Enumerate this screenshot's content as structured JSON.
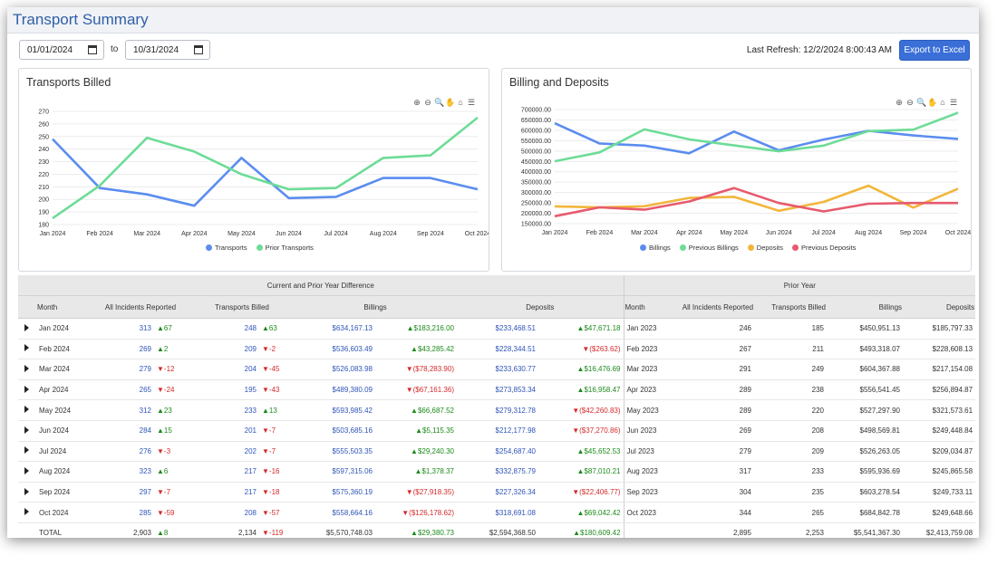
{
  "app": {
    "title": "Transport Summary"
  },
  "filters": {
    "start_date": "01/01/2024",
    "to_label": "to",
    "end_date": "10/31/2024"
  },
  "refresh": {
    "text": "Last Refresh: 12/2/2024 8:00:43 AM"
  },
  "export": {
    "label": "Export to Excel"
  },
  "toolbar_icons": [
    "zoom-in-icon",
    "zoom-out-icon",
    "zoom-icon",
    "pan-icon",
    "home-icon",
    "menu-icon"
  ],
  "colors": {
    "blue": "#5b8def",
    "green": "#6ddc97",
    "yellow": "#f2b63c",
    "red": "#e75a6d",
    "accent": "#3a6fd8"
  },
  "chart_data": [
    {
      "type": "line",
      "title": "Transports Billed",
      "categories": [
        "Jan 2024",
        "Feb 2024",
        "Mar 2024",
        "Apr 2024",
        "May 2024",
        "Jun 2024",
        "Jul 2024",
        "Aug 2024",
        "Sep 2024",
        "Oct 2024"
      ],
      "yticks": [
        180,
        190,
        200,
        210,
        220,
        230,
        240,
        250,
        260,
        270
      ],
      "ylim": [
        180,
        270
      ],
      "series": [
        {
          "name": "Transports",
          "color": "#5b8def",
          "values": [
            248,
            209,
            204,
            195,
            233,
            201,
            202,
            217,
            217,
            208
          ]
        },
        {
          "name": "Prior Transports",
          "color": "#6ddc97",
          "values": [
            185,
            211,
            249,
            238,
            220,
            208,
            209,
            233,
            235,
            265
          ]
        }
      ],
      "legend": "bottom-center"
    },
    {
      "type": "line",
      "title": "Billing and Deposits",
      "categories": [
        "Jan 2024",
        "Feb 2024",
        "Mar 2024",
        "Apr 2024",
        "May 2024",
        "Jun 2024",
        "Jul 2024",
        "Aug 2024",
        "Sep 2024",
        "Oct 2024"
      ],
      "yticks": [
        "150000.00",
        "200000.00",
        "250000.00",
        "300000.00",
        "350000.00",
        "400000.00",
        "450000.00",
        "500000.00",
        "550000.00",
        "600000.00",
        "650000.00",
        "700000.00"
      ],
      "ylim": [
        150000,
        700000
      ],
      "series": [
        {
          "name": "Billings",
          "color": "#5b8def",
          "values": [
            634167.13,
            536603.49,
            526083.98,
            489380.09,
            593985.42,
            503685.16,
            555503.35,
            597315.06,
            575360.19,
            558664.16
          ]
        },
        {
          "name": "Previous Billings",
          "color": "#6ddc97",
          "values": [
            450951.13,
            493318.07,
            604367.88,
            556541.45,
            527297.9,
            498569.81,
            526263.05,
            595936.69,
            603278.54,
            684842.78
          ]
        },
        {
          "name": "Deposits",
          "color": "#f2b63c",
          "values": [
            233468.51,
            228344.51,
            233630.77,
            273853.34,
            279312.78,
            212177.98,
            254687.4,
            332875.79,
            227326.34,
            318691.08
          ]
        },
        {
          "name": "Previous Deposits",
          "color": "#e75a6d",
          "values": [
            185797.33,
            228608.13,
            217154.08,
            256894.87,
            321573.61,
            249448.84,
            209034.87,
            245865.58,
            249733.11,
            249648.66
          ]
        }
      ],
      "legend": "bottom-center"
    }
  ],
  "table": {
    "group_current": "Current and Prior Year Difference",
    "group_prior": "Prior Year",
    "headers": {
      "month": "Month",
      "incidents": "All Incidents Reported",
      "transports": "Transports Billed",
      "billings": "Billings",
      "deposits": "Deposits",
      "p_month": "Month",
      "p_incidents": "All Incidents Reported",
      "p_transports": "Transports Billed",
      "p_billings": "Billings",
      "p_deposits": "Deposits"
    },
    "rows": [
      {
        "month": "Jan 2024",
        "inc": "313",
        "inc_d": "▲67",
        "tr": "248",
        "tr_d": "▲63",
        "bil": "$634,167.13",
        "bil_d": "▲$183,216.00",
        "dep": "$233,468.51",
        "dep_d": "▲$47,671.18",
        "pm": "Jan 2023",
        "pinc": "246",
        "ptr": "185",
        "pbil": "$450,951.13",
        "pdep": "$185,797.33"
      },
      {
        "month": "Feb 2024",
        "inc": "269",
        "inc_d": "▲2",
        "tr": "209",
        "tr_d": "▼-2",
        "bil": "$536,603.49",
        "bil_d": "▲$43,285.42",
        "dep": "$228,344.51",
        "dep_d": "▼($263.62)",
        "pm": "Feb 2023",
        "pinc": "267",
        "ptr": "211",
        "pbil": "$493,318.07",
        "pdep": "$228,608.13"
      },
      {
        "month": "Mar 2024",
        "inc": "279",
        "inc_d": "▼-12",
        "tr": "204",
        "tr_d": "▼-45",
        "bil": "$526,083.98",
        "bil_d": "▼($78,283.90)",
        "dep": "$233,630.77",
        "dep_d": "▲$16,476.69",
        "pm": "Mar 2023",
        "pinc": "291",
        "ptr": "249",
        "pbil": "$604,367.88",
        "pdep": "$217,154.08"
      },
      {
        "month": "Apr 2024",
        "inc": "265",
        "inc_d": "▼-24",
        "tr": "195",
        "tr_d": "▼-43",
        "bil": "$489,380.09",
        "bil_d": "▼($67,161.36)",
        "dep": "$273,853.34",
        "dep_d": "▲$16,958.47",
        "pm": "Apr 2023",
        "pinc": "289",
        "ptr": "238",
        "pbil": "$556,541.45",
        "pdep": "$256,894.87"
      },
      {
        "month": "May 2024",
        "inc": "312",
        "inc_d": "▲23",
        "tr": "233",
        "tr_d": "▲13",
        "bil": "$593,985.42",
        "bil_d": "▲$66,687.52",
        "dep": "$279,312.78",
        "dep_d": "▼($42,260.83)",
        "pm": "May 2023",
        "pinc": "289",
        "ptr": "220",
        "pbil": "$527,297.90",
        "pdep": "$321,573.61"
      },
      {
        "month": "Jun 2024",
        "inc": "284",
        "inc_d": "▲15",
        "tr": "201",
        "tr_d": "▼-7",
        "bil": "$503,685.16",
        "bil_d": "▲$5,115.35",
        "dep": "$212,177.98",
        "dep_d": "▼($37,270.86)",
        "pm": "Jun 2023",
        "pinc": "269",
        "ptr": "208",
        "pbil": "$498,569.81",
        "pdep": "$249,448.84"
      },
      {
        "month": "Jul 2024",
        "inc": "276",
        "inc_d": "▼-3",
        "tr": "202",
        "tr_d": "▼-7",
        "bil": "$555,503.35",
        "bil_d": "▲$29,240.30",
        "dep": "$254,687.40",
        "dep_d": "▲$45,652.53",
        "pm": "Jul 2023",
        "pinc": "279",
        "ptr": "209",
        "pbil": "$526,263.05",
        "pdep": "$209,034.87"
      },
      {
        "month": "Aug 2024",
        "inc": "323",
        "inc_d": "▲6",
        "tr": "217",
        "tr_d": "▼-16",
        "bil": "$597,315.06",
        "bil_d": "▲$1,378.37",
        "dep": "$332,875.79",
        "dep_d": "▲$87,010.21",
        "pm": "Aug 2023",
        "pinc": "317",
        "ptr": "233",
        "pbil": "$595,936.69",
        "pdep": "$245,865.58"
      },
      {
        "month": "Sep 2024",
        "inc": "297",
        "inc_d": "▼-7",
        "tr": "217",
        "tr_d": "▼-18",
        "bil": "$575,360.19",
        "bil_d": "▼($27,918.35)",
        "dep": "$227,326.34",
        "dep_d": "▼($22,406.77)",
        "pm": "Sep 2023",
        "pinc": "304",
        "ptr": "235",
        "pbil": "$603,278.54",
        "pdep": "$249,733.11"
      },
      {
        "month": "Oct 2024",
        "inc": "285",
        "inc_d": "▼-59",
        "tr": "208",
        "tr_d": "▼-57",
        "bil": "$558,664.16",
        "bil_d": "▼($126,178.62)",
        "dep": "$318,691.08",
        "dep_d": "▲$69,042.42",
        "pm": "Oct 2023",
        "pinc": "344",
        "ptr": "265",
        "pbil": "$684,842.78",
        "pdep": "$249,648.66"
      }
    ],
    "total": {
      "label": "TOTAL",
      "inc": "2,903",
      "inc_d": "▲8",
      "tr": "2,134",
      "tr_d": "▼-119",
      "bil": "$5,570,748.03",
      "bil_d": "▲$29,380.73",
      "dep": "$2,594,368.50",
      "dep_d": "▲$180,609.42",
      "pinc": "2,895",
      "ptr": "2,253",
      "pbil": "$5,541,367.30",
      "pdep": "$2,413,759.08"
    }
  }
}
